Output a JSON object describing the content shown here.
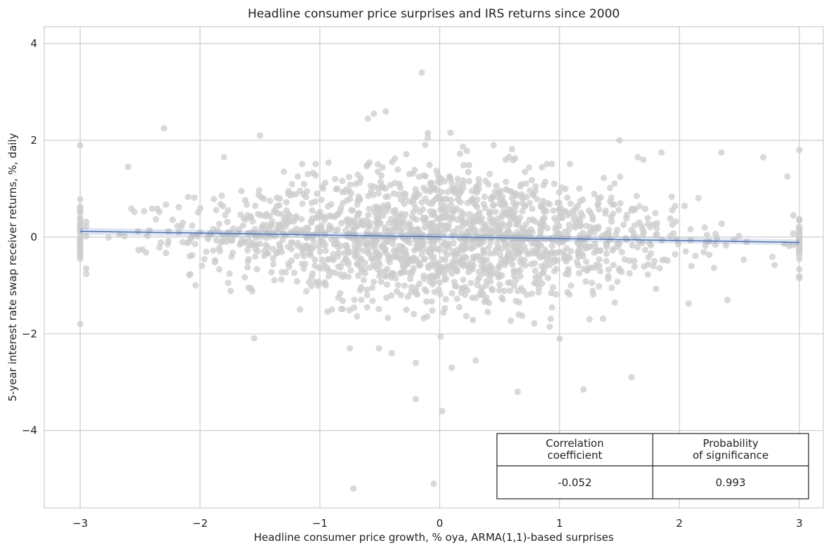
{
  "chart_data": {
    "type": "scatter",
    "title": "Headline consumer price surprises and IRS returns since 2000",
    "xlabel": "Headline consumer price growth, % oya, ARMA(1,1)-based surprises",
    "ylabel": "5-year interest rate swap receiver returns, %, daily",
    "xlim": [
      -3.3,
      3.2
    ],
    "ylim": [
      -5.6,
      4.35
    ],
    "x_ticks": [
      -3,
      -2,
      -1,
      0,
      1,
      2,
      3
    ],
    "x_tick_labels": [
      "−3",
      "−2",
      "−1",
      "0",
      "1",
      "2",
      "3"
    ],
    "y_ticks": [
      -4,
      -2,
      0,
      2,
      4
    ],
    "y_tick_labels": [
      "−4",
      "−2",
      "0",
      "2",
      "4"
    ],
    "grid": true,
    "point_color": "#cccccc",
    "line_color": "#4c72b0",
    "band_color": "#4c72b0",
    "regression": {
      "x": [
        -3,
        3
      ],
      "y": [
        0.12,
        -0.11
      ],
      "ci_halfwidth": [
        0.07,
        0.06
      ]
    },
    "points": {
      "x": [
        -0.72,
        -0.05,
        0.02,
        -0.2,
        -0.15,
        0.5,
        0.65,
        1.2,
        1.6,
        -3,
        -3,
        3,
        3,
        -0.45,
        -0.55,
        -0.6,
        -0.1,
        -0.1,
        -2.3,
        1.85,
        2.35,
        2.7,
        1.5,
        0.45,
        -0.4,
        0.3,
        -0.75,
        -0.2,
        1.0,
        0.1,
        -0.6,
        0.55,
        -1.8,
        -1.5,
        1.7,
        2.9,
        -2.6,
        -1.3,
        2.4,
        0.8,
        -0.3,
        0.15,
        -0.9,
        1.25,
        -1.1,
        0.9,
        -1.6,
        2.1,
        0.35,
        -0.5
      ],
      "y": [
        -5.2,
        -5.1,
        -3.6,
        -3.35,
        3.4,
        -4.15,
        -3.2,
        -3.15,
        -2.9,
        1.9,
        -1.8,
        1.8,
        -0.85,
        2.6,
        2.55,
        2.45,
        2.15,
        2.05,
        2.25,
        1.75,
        1.75,
        1.65,
        2.0,
        1.9,
        -2.4,
        -2.55,
        -2.3,
        -2.6,
        -2.1,
        -2.7,
        1.5,
        1.6,
        1.65,
        2.1,
        1.6,
        1.25,
        1.45,
        1.35,
        -1.3,
        1.05,
        0.9,
        1.2,
        -1.5,
        -1.7,
        1.3,
        0.7,
        -0.5,
        -0.6,
        -1.2,
        0.3
      ]
    },
    "cloud": {
      "n": 1800,
      "x_sd": 1.0,
      "y_sd": 0.75,
      "ends_x": [
        -3,
        3
      ],
      "ends_n": 30
    },
    "table": {
      "headers": [
        "Correlation\ncoefficient",
        "Probability\nof significance"
      ],
      "values": [
        "-0.052",
        "0.993"
      ]
    }
  }
}
